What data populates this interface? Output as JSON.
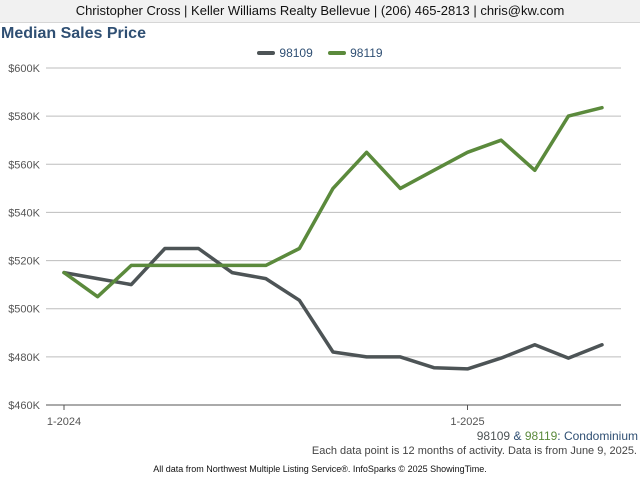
{
  "header": {
    "text": "Christopher Cross | Keller Williams Realty Bellevue | (206) 465-2813 | chris@kw.com"
  },
  "chart_data": {
    "type": "line",
    "title": "Median Sales Price",
    "xlabel": "",
    "ylabel": "",
    "ylim": [
      460000,
      600000
    ],
    "yticks": [
      {
        "value": 460000,
        "label": "$460K"
      },
      {
        "value": 480000,
        "label": "$480K"
      },
      {
        "value": 500000,
        "label": "$500K"
      },
      {
        "value": 520000,
        "label": "$520K"
      },
      {
        "value": 540000,
        "label": "$540K"
      },
      {
        "value": 560000,
        "label": "$560K"
      },
      {
        "value": 580000,
        "label": "$580K"
      },
      {
        "value": 600000,
        "label": "$600K"
      }
    ],
    "x": [
      "1-2024",
      "2-2024",
      "3-2024",
      "4-2024",
      "5-2024",
      "6-2024",
      "7-2024",
      "8-2024",
      "9-2024",
      "10-2024",
      "11-2024",
      "12-2024",
      "1-2025",
      "2-2025",
      "3-2025",
      "4-2025",
      "5-2025"
    ],
    "xtick_labels": [
      "1-2024",
      "1-2025"
    ],
    "grid": true,
    "legend_position": "top-center",
    "series": [
      {
        "name": "98109",
        "color": "#4d5456",
        "values": [
          515000,
          512500,
          510000,
          525000,
          525000,
          515000,
          512500,
          503500,
          482000,
          480000,
          480000,
          475500,
          475000,
          479500,
          485000,
          479500,
          485000
        ]
      },
      {
        "name": "98119",
        "color": "#5b8a3c",
        "values": [
          515000,
          505000,
          518000,
          518000,
          518000,
          518000,
          518000,
          525000,
          550000,
          565000,
          550000,
          557500,
          565000,
          570000,
          557500,
          580000,
          583500
        ]
      }
    ]
  },
  "caption": {
    "zip1": "98109",
    "amp": "&",
    "zip2": "98119",
    "property_type": ": Condominium",
    "note": "Each data point is 12 months of activity. Data is from June 9, 2025."
  },
  "footer": {
    "text": "All data from Northwest Multiple Listing Service®. InfoSparks © 2025 ShowingTime."
  }
}
